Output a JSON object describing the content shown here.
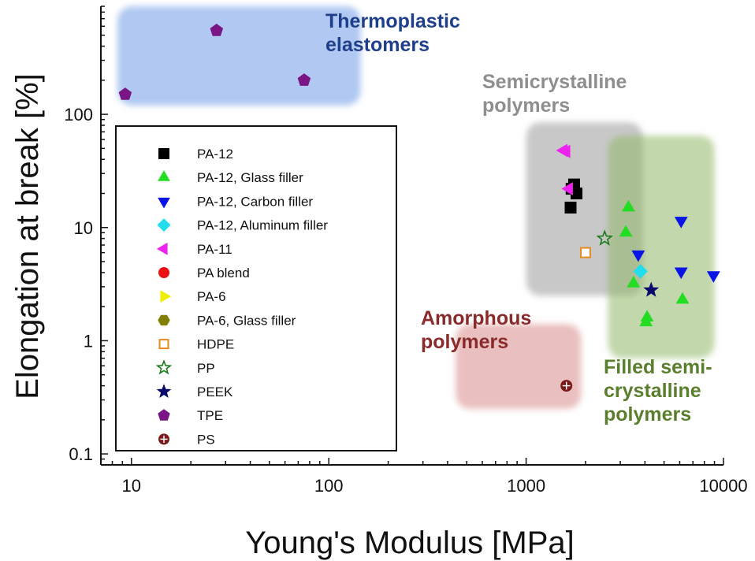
{
  "chart_data": {
    "type": "scatter",
    "title": "",
    "xlabel": "Young's Modulus [MPa]",
    "ylabel": "Elongation at break [%]",
    "xscale": "log",
    "yscale": "log",
    "xlim": [
      7,
      10000
    ],
    "ylim": [
      0.08,
      900
    ],
    "x_ticks": [
      10,
      100,
      1000,
      10000
    ],
    "x_tick_labels": [
      "10",
      "100",
      "1000",
      "10000"
    ],
    "y_ticks": [
      0.1,
      1,
      10,
      100
    ],
    "y_tick_labels": [
      "0.1",
      "1",
      "10",
      "100"
    ],
    "legend_position": "left",
    "regions": [
      {
        "label": [
          "Thermoplastic",
          "elastomers"
        ],
        "x": [
          8.5,
          145
        ],
        "y": [
          120,
          900
        ],
        "color": "#6f9be8",
        "text_color": "#1f3f8a"
      },
      {
        "label": [
          "Semicrystalline",
          "polymers"
        ],
        "x": [
          1000,
          3900
        ],
        "y": [
          2.5,
          85
        ],
        "color": "#9a9a9a",
        "text_color": "#8e8e8e"
      },
      {
        "label": [
          "Filled  semi-",
          "crystalline",
          "polymers"
        ],
        "x": [
          2600,
          9000
        ],
        "y": [
          0.7,
          65
        ],
        "color": "#8fb867",
        "text_color": "#5a7f2c"
      },
      {
        "label": [
          "Amorphous",
          "polymers"
        ],
        "x": [
          440,
          1900
        ],
        "y": [
          0.25,
          1.4
        ],
        "color": "#d98a8a",
        "text_color": "#8a2a2a"
      }
    ],
    "series": [
      {
        "name": "PA-12",
        "marker": "square",
        "color": "#000000",
        "points": [
          [
            1700,
            22
          ],
          [
            1750,
            24
          ],
          [
            1800,
            20
          ],
          [
            1680,
            15
          ]
        ]
      },
      {
        "name": "PA-12, Glass filler",
        "marker": "triangle-up",
        "color": "#22dd22",
        "points": [
          [
            3300,
            15
          ],
          [
            3200,
            9
          ],
          [
            3500,
            3.2
          ],
          [
            4100,
            1.6
          ],
          [
            4050,
            1.45
          ],
          [
            6200,
            2.3
          ]
        ]
      },
      {
        "name": "PA-12, Carbon filler",
        "marker": "triangle-down",
        "color": "#0a14e6",
        "points": [
          [
            6100,
            11.5
          ],
          [
            3700,
            5.8
          ],
          [
            6100,
            4.1
          ],
          [
            8900,
            3.8
          ]
        ]
      },
      {
        "name": "PA-12, Aluminum filler",
        "marker": "diamond",
        "color": "#22ddee",
        "points": [
          [
            3800,
            4.1
          ]
        ]
      },
      {
        "name": "PA-11",
        "marker": "triangle-left",
        "color": "#ee22ee",
        "points": [
          [
            1550,
            48
          ],
          [
            1600,
            47
          ],
          [
            1650,
            22
          ]
        ]
      },
      {
        "name": "PA blend",
        "marker": "circle",
        "color": "#ee1111",
        "points": []
      },
      {
        "name": "PA-6",
        "marker": "triangle-right",
        "color": "#eeee00",
        "points": []
      },
      {
        "name": "PA-6, Glass filler",
        "marker": "hexagon",
        "color": "#7f7f00",
        "points": []
      },
      {
        "name": "HDPE",
        "marker": "square-open",
        "color": "#e88a22",
        "points": [
          [
            2000,
            6
          ]
        ]
      },
      {
        "name": "PP",
        "marker": "star-open",
        "color": "#1b7a1b",
        "points": [
          [
            2500,
            8
          ]
        ]
      },
      {
        "name": "PEEK",
        "marker": "star",
        "color": "#0a0a6a",
        "points": [
          [
            4300,
            2.8
          ]
        ]
      },
      {
        "name": "TPE",
        "marker": "pentagon",
        "color": "#7a1585",
        "points": [
          [
            9.3,
            150
          ],
          [
            27,
            550
          ],
          [
            75,
            200
          ]
        ]
      },
      {
        "name": "PS",
        "marker": "circle-cross",
        "color": "#7a1a1a",
        "points": [
          [
            1600,
            0.4
          ]
        ]
      }
    ]
  }
}
